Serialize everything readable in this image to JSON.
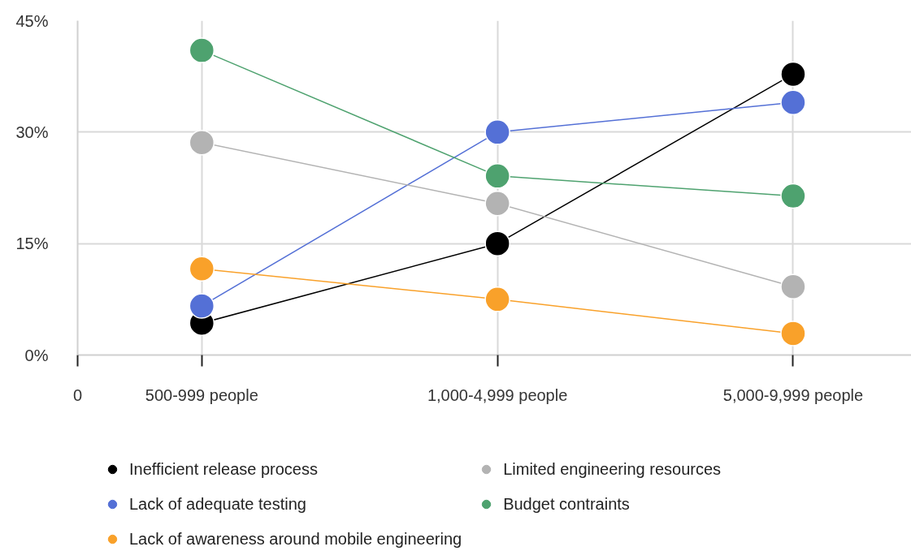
{
  "chart_data": {
    "type": "line",
    "categories": [
      "500-999 people",
      "1,000-4,999 people",
      "5,000-9,999 people"
    ],
    "ylim": [
      0,
      45
    ],
    "yticks": [
      {
        "value": 0,
        "label": "0%"
      },
      {
        "value": 15,
        "label": "15%"
      },
      {
        "value": 30,
        "label": "30%"
      },
      {
        "value": 45,
        "label": "45%"
      }
    ],
    "annotations": [
      "0"
    ],
    "grid": true,
    "legend": "bottom",
    "marker": "circle",
    "line_style": "solid",
    "series": [
      {
        "name": "Inefficient release process",
        "color": "#000000",
        "values": [
          4.3,
          15,
          37.8
        ]
      },
      {
        "name": "Lack of adequate testing",
        "color": "#5470d6",
        "values": [
          6.6,
          30,
          34
        ]
      },
      {
        "name": "Lack of awareness around mobile engineering",
        "color": "#f9a12a",
        "values": [
          11.6,
          7.5,
          2.9
        ]
      },
      {
        "name": "Limited engineering resources",
        "color": "#b3b3b3",
        "values": [
          28.6,
          20.4,
          9.2
        ]
      },
      {
        "name": "Budget contraints",
        "color": "#4ea26f",
        "values": [
          41,
          24.1,
          21.4
        ]
      }
    ]
  }
}
